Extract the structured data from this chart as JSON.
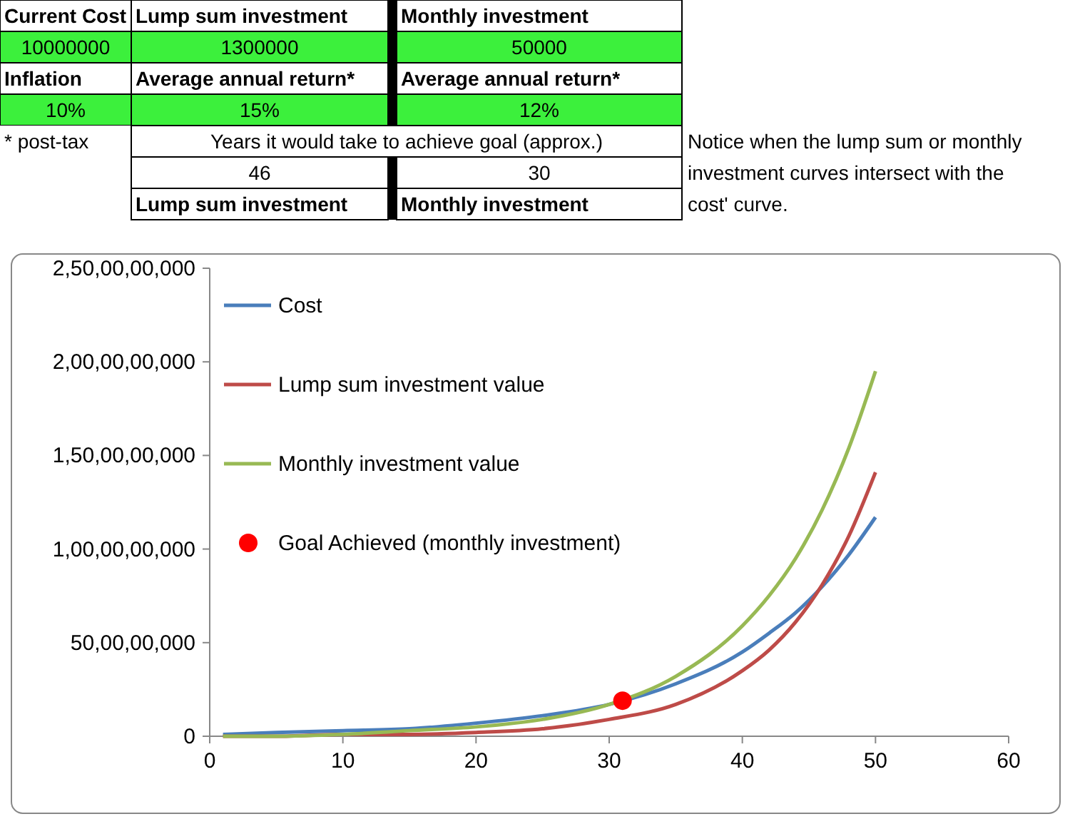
{
  "chart_data": [
    {
      "type": "other",
      "annotations": [
        "Current Cost",
        "Lump sum investment",
        "Monthly investment",
        "10000000",
        "1300000",
        "50000",
        "Inflation",
        "Average annual return*",
        "Average annual return*",
        "10%",
        "15%",
        "12%",
        "* post-tax",
        "Years it would take to achieve goal (approx.)",
        "46",
        "30",
        "Lump sum investment",
        "Monthly investment",
        "Notice when the lump sum or monthly investment curves intersect with the cost' curve."
      ]
    },
    {
      "type": "line",
      "x": [
        1,
        5,
        10,
        15,
        20,
        25,
        30,
        35,
        40,
        42,
        44,
        46,
        48,
        50
      ],
      "series": [
        {
          "name": "Cost",
          "color": "#4a7ebb",
          "values": [
            10000000,
            20000000,
            30000000,
            40000000,
            70000000,
            110000000,
            170000000,
            280000000,
            450000000,
            550000000,
            660000000,
            800000000,
            970000000,
            1170000000
          ]
        },
        {
          "name": "Lump sum investment value",
          "color": "#be4b48",
          "values": [
            0,
            0,
            10000000,
            10000000,
            20000000,
            40000000,
            90000000,
            170000000,
            350000000,
            460000000,
            610000000,
            810000000,
            1070000000,
            1410000000
          ]
        },
        {
          "name": "Monthly investment value",
          "color": "#98b954",
          "values": [
            0,
            0,
            10000000,
            30000000,
            50000000,
            90000000,
            170000000,
            320000000,
            590000000,
            750000000,
            950000000,
            1210000000,
            1540000000,
            1950000000
          ]
        },
        {
          "name": "Goal Achieved (monthly investment)",
          "type": "scatter",
          "marker": "circle",
          "color": "#ff0000",
          "x": [
            31
          ],
          "values": [
            190000000
          ]
        }
      ],
      "xlim": [
        0,
        60
      ],
      "xticks": [
        0,
        10,
        20,
        30,
        40,
        50,
        60
      ],
      "ylim": [
        0,
        2500000000
      ],
      "yticks": [
        {
          "value": 0,
          "label": "0"
        },
        {
          "value": 500000000,
          "label": "50,00,00,000"
        },
        {
          "value": 1000000000,
          "label": "1,00,00,00,000"
        },
        {
          "value": 1500000000,
          "label": "1,50,00,00,000"
        },
        {
          "value": 2000000000,
          "label": "2,00,00,00,000"
        },
        {
          "value": 2500000000,
          "label": "2,50,00,00,000"
        }
      ],
      "legend": "top left"
    }
  ]
}
